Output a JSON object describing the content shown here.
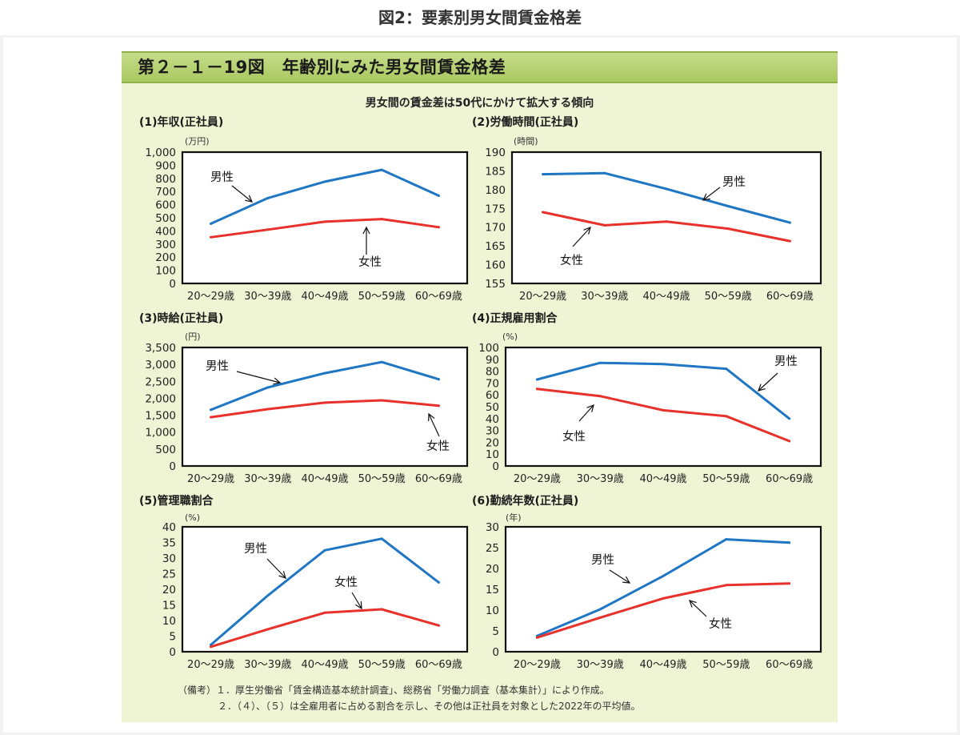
{
  "page_title": "図2：要素別男女間賃金格差",
  "figure_title": "第２－１－19図　年齢別にみた男女間賃金格差",
  "subtitle": "男女間の賃金差は50代にかけて拡大する傾向",
  "notes": [
    "（備考）１．厚生労働省「賃金構造基本統計調査」、総務省「労働力調査（基本集計）」により作成。",
    "２．（４）、（５）は全雇用者に占める割合を示し、その他は正社員を対象とした2022年の平均値。"
  ],
  "colors": {
    "male": "#1f77c4",
    "female": "#e8312a"
  },
  "chart_data": [
    {
      "type": "line",
      "title": "(1)年収(正社員)",
      "unit": "(万円)",
      "categories": [
        "20～29歳",
        "30～39歳",
        "40～49歳",
        "50～59歳",
        "60～69歳"
      ],
      "yticks": [
        "0",
        "100",
        "200",
        "300",
        "400",
        "500",
        "600",
        "700",
        "800",
        "900",
        "1,000"
      ],
      "ylim": [
        0,
        1000
      ],
      "series": [
        {
          "name": "男性",
          "values": [
            455,
            650,
            775,
            865,
            668
          ]
        },
        {
          "name": "女性",
          "values": [
            352,
            410,
            470,
            490,
            428
          ]
        }
      ]
    },
    {
      "type": "line",
      "title": "(2)労働時間(正社員)",
      "unit": "(時間)",
      "categories": [
        "20～29歳",
        "30～39歳",
        "40～49歳",
        "50～59歳",
        "60～69歳"
      ],
      "yticks": [
        "155",
        "160",
        "165",
        "170",
        "175",
        "180",
        "185",
        "190"
      ],
      "ylim": [
        155,
        190
      ],
      "series": [
        {
          "name": "男性",
          "values": [
            184.1,
            184.4,
            180.2,
            175.6,
            171.2
          ]
        },
        {
          "name": "女性",
          "values": [
            174.0,
            170.5,
            171.5,
            169.6,
            166.3
          ]
        }
      ]
    },
    {
      "type": "line",
      "title": "(3)時給(正社員)",
      "unit": "(円)",
      "categories": [
        "20～29歳",
        "30～39歳",
        "40～49歳",
        "50～59歳",
        "60～69歳"
      ],
      "yticks": [
        "0",
        "500",
        "1,000",
        "1,500",
        "2,000",
        "2,500",
        "3,000",
        "3,500"
      ],
      "ylim": [
        0,
        3500
      ],
      "series": [
        {
          "name": "男性",
          "values": [
            1660,
            2320,
            2740,
            3070,
            2560
          ]
        },
        {
          "name": "女性",
          "values": [
            1440,
            1680,
            1870,
            1940,
            1780
          ]
        }
      ]
    },
    {
      "type": "line",
      "title": "(4)正規雇用割合",
      "unit": "(%)",
      "categories": [
        "20～29歳",
        "30～39歳",
        "40～49歳",
        "50～59歳",
        "60～69歳"
      ],
      "yticks": [
        "0",
        "10",
        "20",
        "30",
        "40",
        "50",
        "60",
        "70",
        "80",
        "90",
        "100"
      ],
      "ylim": [
        0,
        100
      ],
      "series": [
        {
          "name": "男性",
          "values": [
            73,
            87,
            86,
            82,
            40
          ]
        },
        {
          "name": "女性",
          "values": [
            65,
            59,
            47,
            42,
            21
          ]
        }
      ]
    },
    {
      "type": "line",
      "title": "(5)管理職割合",
      "unit": "(%)",
      "categories": [
        "20～29歳",
        "30～39歳",
        "40～49歳",
        "50～59歳",
        "60～69歳"
      ],
      "yticks": [
        "0",
        "5",
        "10",
        "15",
        "20",
        "25",
        "30",
        "35",
        "40"
      ],
      "ylim": [
        0,
        40
      ],
      "series": [
        {
          "name": "男性",
          "values": [
            2.2,
            18.0,
            32.5,
            36.2,
            22.2
          ]
        },
        {
          "name": "女性",
          "values": [
            1.6,
            7.2,
            12.5,
            13.6,
            8.4
          ]
        }
      ]
    },
    {
      "type": "line",
      "title": "(6)勤続年数(正社員)",
      "unit": "(年)",
      "categories": [
        "20～29歳",
        "30～39歳",
        "40～49歳",
        "50～59歳",
        "60～69歳"
      ],
      "yticks": [
        "0",
        "5",
        "10",
        "15",
        "20",
        "25",
        "30"
      ],
      "ylim": [
        0,
        30
      ],
      "series": [
        {
          "name": "男性",
          "values": [
            3.8,
            10.2,
            18.2,
            27.0,
            26.2
          ]
        },
        {
          "name": "女性",
          "values": [
            3.4,
            8.2,
            12.8,
            16.0,
            16.4
          ]
        }
      ]
    }
  ]
}
